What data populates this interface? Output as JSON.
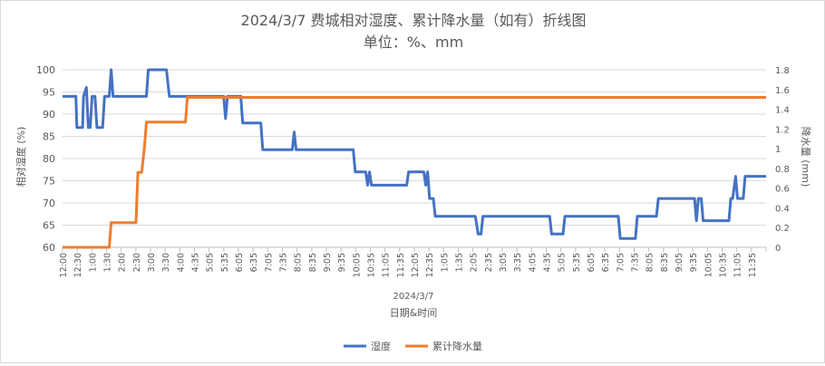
{
  "chart_data": {
    "type": "line",
    "title": "2024/3/7 费城相对湿度、累计降水量（如有）折线图",
    "subtitle": "单位：%、mm",
    "date_label": "2024/3/7",
    "xlabel": "日期&时间",
    "ylabel_left": "相对湿度 (%)",
    "ylabel_right": "降水量 (mm)",
    "ylim_left": [
      60,
      100
    ],
    "ylim_right": [
      0,
      1.8
    ],
    "yticks_left": [
      "60",
      "65",
      "70",
      "75",
      "80",
      "85",
      "90",
      "95",
      "100"
    ],
    "yticks_right": [
      "0",
      "0.2",
      "0.4",
      "0.6",
      "0.8",
      "1",
      "1.2",
      "1.4",
      "1.6",
      "1.8"
    ],
    "xticks": [
      "12:00",
      "12:30",
      "1:00",
      "1:30",
      "2:00",
      "2:30",
      "3:00",
      "3:30",
      "4:00",
      "4:35",
      "5:05",
      "5:35",
      "6:05",
      "6:35",
      "7:05",
      "7:35",
      "8:05",
      "8:35",
      "9:05",
      "9:35",
      "10:05",
      "10:35",
      "11:05",
      "11:35",
      "12:05",
      "12:35",
      "1:05",
      "1:35",
      "2:05",
      "2:35",
      "3:05",
      "3:35",
      "4:05",
      "4:35",
      "5:05",
      "5:35",
      "6:05",
      "6:35",
      "7:05",
      "7:35",
      "8:05",
      "8:35",
      "9:05",
      "9:35",
      "10:05",
      "10:35",
      "11:05",
      "11:35"
    ],
    "legend_position": "bottom",
    "grid": true,
    "series": [
      {
        "name": "湿度",
        "color": "#4472C4",
        "axis": "left",
        "points": [
          [
            0,
            94
          ],
          [
            1.4,
            94
          ],
          [
            1.5,
            87
          ],
          [
            2.1,
            87
          ],
          [
            2.2,
            94
          ],
          [
            2.5,
            96
          ],
          [
            2.7,
            87
          ],
          [
            2.9,
            87
          ],
          [
            3.1,
            94
          ],
          [
            3.4,
            94
          ],
          [
            3.6,
            87
          ],
          [
            4.2,
            87
          ],
          [
            4.4,
            94
          ],
          [
            4.9,
            94
          ],
          [
            5.1,
            100
          ],
          [
            5.3,
            94
          ],
          [
            8.8,
            94
          ],
          [
            9.0,
            100
          ],
          [
            10.9,
            100
          ],
          [
            11.2,
            94
          ],
          [
            16.9,
            94
          ],
          [
            17.1,
            89
          ],
          [
            17.3,
            94
          ],
          [
            18.7,
            94
          ],
          [
            18.9,
            88
          ],
          [
            20.8,
            88
          ],
          [
            21.0,
            82
          ],
          [
            24.1,
            82
          ],
          [
            24.3,
            86
          ],
          [
            24.5,
            82
          ],
          [
            30.5,
            82
          ],
          [
            30.7,
            77
          ],
          [
            31.8,
            77
          ],
          [
            32.0,
            74
          ],
          [
            32.2,
            77
          ],
          [
            32.4,
            74
          ],
          [
            36.1,
            74
          ],
          [
            36.3,
            77
          ],
          [
            37.9,
            77
          ],
          [
            38.1,
            74
          ],
          [
            38.3,
            77
          ],
          [
            38.5,
            71
          ],
          [
            38.9,
            71
          ],
          [
            39.1,
            67
          ],
          [
            43.3,
            67
          ],
          [
            43.6,
            63
          ],
          [
            43.9,
            63
          ],
          [
            44.1,
            67
          ],
          [
            51.1,
            67
          ],
          [
            51.3,
            63
          ],
          [
            52.5,
            63
          ],
          [
            52.7,
            67
          ],
          [
            58.3,
            67
          ],
          [
            58.5,
            62
          ],
          [
            60.1,
            62
          ],
          [
            60.3,
            67
          ],
          [
            62.3,
            67
          ],
          [
            62.5,
            71
          ],
          [
            66.3,
            71
          ],
          [
            66.5,
            66
          ],
          [
            66.7,
            71
          ],
          [
            67.0,
            71
          ],
          [
            67.2,
            66
          ],
          [
            69.9,
            66
          ],
          [
            70.1,
            71
          ],
          [
            70.3,
            71
          ],
          [
            70.6,
            76
          ],
          [
            70.8,
            71
          ],
          [
            71.4,
            71
          ],
          [
            71.6,
            76
          ],
          [
            73.8,
            76
          ]
        ]
      },
      {
        "name": "累计降水量",
        "color": "#ED7D31",
        "axis": "right",
        "points": [
          [
            0,
            0
          ],
          [
            4.9,
            0
          ],
          [
            5.1,
            0.25
          ],
          [
            7.7,
            0.25
          ],
          [
            7.9,
            0.76
          ],
          [
            8.3,
            0.76
          ],
          [
            8.6,
            1.02
          ],
          [
            8.8,
            1.27
          ],
          [
            12.9,
            1.27
          ],
          [
            13.1,
            1.52
          ],
          [
            73.8,
            1.52
          ]
        ]
      }
    ]
  }
}
